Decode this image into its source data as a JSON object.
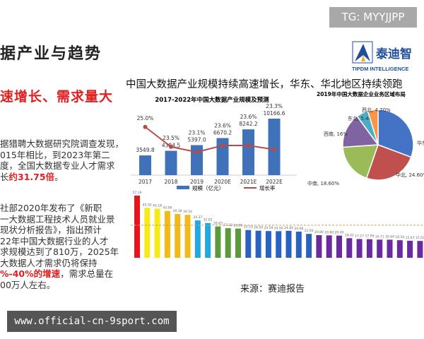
{
  "slide": {
    "title": "据产业与趋势",
    "subtitle": "速增长、需求量大",
    "para1": [
      "据猎聘大数据研究院调查发现，",
      "015年相比，到2023年第二",
      "度，全国大数据专业人才需求"
    ],
    "para1_last_prefix": "长",
    "para1_highlight": "约31.75倍",
    "para1_end": "。",
    "para2": [
      "社部2020年发布了《新职",
      "一大数据工程技术人员就业景",
      "现状分析报告》，指出预计",
      "22年中国大数据行业的人才",
      "求规模达到了810万，2025年",
      "大数据人才需求仍将保持"
    ],
    "para2_highlight": "%-40%的增速",
    "para2_after": "，需求总量在",
    "para2_last": "00万人左右。",
    "headline": "中国大数据产业规模持续高速增长，华东、华北地区持续领跑",
    "source": "来源：赛迪报告"
  },
  "badge": "TG: MYYJJPP",
  "logo": {
    "name": "泰迪智",
    "sub": "TIPDM INTELLIGENCE"
  },
  "footer": "www.official-cn-9sport.com",
  "chart_data": [
    {
      "type": "bar",
      "title": "2017-2022年中国大数据产业规模及预测",
      "categories": [
        "2017",
        "2018",
        "2019",
        "2020E",
        "2021E",
        "2022E"
      ],
      "series": [
        {
          "name": "规模（亿元）",
          "values": [
            3549.8,
            4384.5,
            5397.0,
            6670.2,
            8242.2,
            10166.6
          ],
          "color": "#3f72b8",
          "labels": [
            "3549.8",
            "4384.5",
            "5397.0",
            "6670.2",
            "8242.2",
            "10166.6"
          ]
        },
        {
          "name": "增长率",
          "type": "line",
          "values": [
            25.0,
            23.5,
            23.1,
            23.6,
            23.6,
            23.3
          ],
          "color": "#b84a4a",
          "labels": [
            "25.0%",
            "23.5%",
            "23.1%",
            "23.6%",
            "23.6%",
            "23.3%"
          ]
        }
      ]
    },
    {
      "type": "pie",
      "title": "2019年中国大数据企业业务区域布局",
      "slices": [
        {
          "label": "华东",
          "value": 30.7,
          "color": "#4472c4"
        },
        {
          "label": "华北, 24.60%",
          "value": 24.6,
          "color": "#c0504d"
        },
        {
          "label": "中南, 18.60%",
          "value": 18.6,
          "color": "#9bbb59"
        },
        {
          "label": "西南, 16%",
          "value": 16,
          "color": "#8064a2"
        },
        {
          "label": "东北, 5.40%",
          "value": 5.4,
          "color": "#4bacc6"
        },
        {
          "label": "西北, 4.70%",
          "value": 4.7,
          "color": "#f79646"
        }
      ]
    },
    {
      "type": "bar",
      "values": [
        57.19,
        45.92,
        45.18,
        43.06,
        40.38,
        39.54,
        34.37,
        32.02,
        28.83,
        27.23,
        26.85,
        25.53,
        24.93,
        24.59,
        24.5,
        24.84,
        24.08,
        22.0,
        20.8,
        20.6,
        20.4,
        18.02,
        17.27,
        17.09,
        16.71,
        16.64,
        16.16,
        15.67,
        15.5
      ],
      "colors": [
        "#e8141c",
        "#f5ea1a",
        "#f5ea1a",
        "#f5b81a",
        "#f5b81a",
        "#f5b81a",
        "#22a8e0",
        "#22a8e0",
        "#5a9a3a",
        "#5a9a3a",
        "#5a9a3a",
        "#2a62c0",
        "#2a62c0",
        "#2a62c0",
        "#2a62c0",
        "#2a62c0",
        "#2a62c0",
        "#2a62c0",
        "#6a2aa0"
      ],
      "reference_line": true
    }
  ]
}
